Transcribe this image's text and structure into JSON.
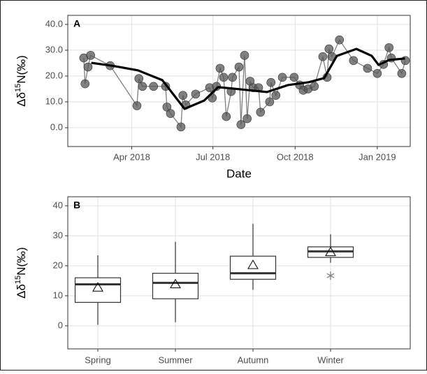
{
  "chart_data": [
    {
      "type": "line",
      "panel": "A",
      "x_label": "Date",
      "y_label": {
        "prefix": "Δδ",
        "superscript": "15",
        "suffix": "N(‰)"
      },
      "x": [
        2018.1,
        2018.104,
        2018.113,
        2018.121,
        2018.181,
        2018.263,
        2018.269,
        2018.28,
        2018.314,
        2018.351,
        2018.355,
        2018.366,
        2018.398,
        2018.404,
        2018.413,
        2018.443,
        2018.486,
        2018.494,
        2018.507,
        2018.518,
        2018.529,
        2018.537,
        2018.552,
        2018.556,
        2018.576,
        2018.582,
        2018.593,
        2018.601,
        2018.61,
        2018.619,
        2018.636,
        2018.642,
        2018.67,
        2018.674,
        2018.689,
        2018.709,
        2018.745,
        2018.762,
        2018.773,
        2018.788,
        2018.807,
        2018.833,
        2018.846,
        2018.852,
        2018.861,
        2018.884,
        2018.927,
        2018.97,
        2019.0,
        2019.019,
        2019.036,
        2019.043,
        2019.075,
        2019.086
      ],
      "values": [
        27,
        17,
        23.5,
        28,
        24,
        8.5,
        19,
        16,
        16,
        16,
        8,
        5.5,
        0.3,
        12.5,
        8.8,
        13,
        15.5,
        11.5,
        16,
        23,
        19.5,
        4.3,
        14,
        19.5,
        23.5,
        1.2,
        28,
        3.5,
        18,
        15.5,
        15.5,
        6,
        10,
        17.5,
        12.5,
        19.5,
        19.5,
        16.5,
        14.5,
        15,
        16,
        27.5,
        19.5,
        30.5,
        27.5,
        34,
        26,
        23,
        21,
        24.5,
        31,
        27,
        21,
        26
      ],
      "color": "#555555",
      "line_color": "#808080",
      "trend": {
        "color": "#000000",
        "x": [
          2018.123,
          2018.187,
          2018.266,
          2018.341,
          2018.409,
          2018.469,
          2018.512,
          2018.576,
          2018.662,
          2018.726,
          2018.79,
          2018.837,
          2018.876,
          2018.936,
          2018.983,
          2019.004,
          2019.036,
          2019.085
        ],
        "values": [
          25.1,
          24,
          22.2,
          18.4,
          7.3,
          10.5,
          15.7,
          14.9,
          13.8,
          16.5,
          17.6,
          19.2,
          27.8,
          30.5,
          27.8,
          24.3,
          26.2,
          26.8
        ]
      },
      "xlim": [
        2018.051,
        2019.101
      ],
      "xticks": [
        {
          "value": 2018.247,
          "label": "Apr 2018"
        },
        {
          "value": 2018.496,
          "label": "Jul 2018"
        },
        {
          "value": 2018.748,
          "label": "Oct 2018"
        },
        {
          "value": 2019.0,
          "label": "Jan 2019"
        }
      ],
      "ylim": [
        -7.3,
        43.5
      ],
      "yticks": [
        {
          "value": 0,
          "label": "0.0"
        },
        {
          "value": 10,
          "label": "10.0"
        },
        {
          "value": 20,
          "label": "20.0"
        },
        {
          "value": 30,
          "label": "30.0"
        },
        {
          "value": 40,
          "label": "40.0"
        }
      ],
      "grid": true
    },
    {
      "type": "box",
      "panel": "B",
      "y_label": {
        "prefix": "Δδ",
        "superscript": "15",
        "suffix": "N(‰)"
      },
      "categories": [
        "Spring",
        "Summer",
        "Autumn",
        "Winter"
      ],
      "min": [
        0.3,
        1.2,
        12,
        21
      ],
      "q1": [
        7.8,
        9,
        15.5,
        22.8
      ],
      "median": [
        13.8,
        14.3,
        17.5,
        24.8
      ],
      "q3": [
        16,
        17.5,
        23.2,
        26.3
      ],
      "max": [
        23.5,
        28,
        34,
        30.5
      ],
      "mean": [
        12.7,
        13.8,
        20.2,
        24.5
      ],
      "outliers": [
        [],
        [],
        [],
        [
          16.7
        ]
      ],
      "color": "#333333",
      "outlier_color": "#808080",
      "ylim": [
        -7.7,
        43
      ],
      "yticks": [
        0,
        10,
        20,
        30,
        40
      ],
      "grid": true
    }
  ]
}
